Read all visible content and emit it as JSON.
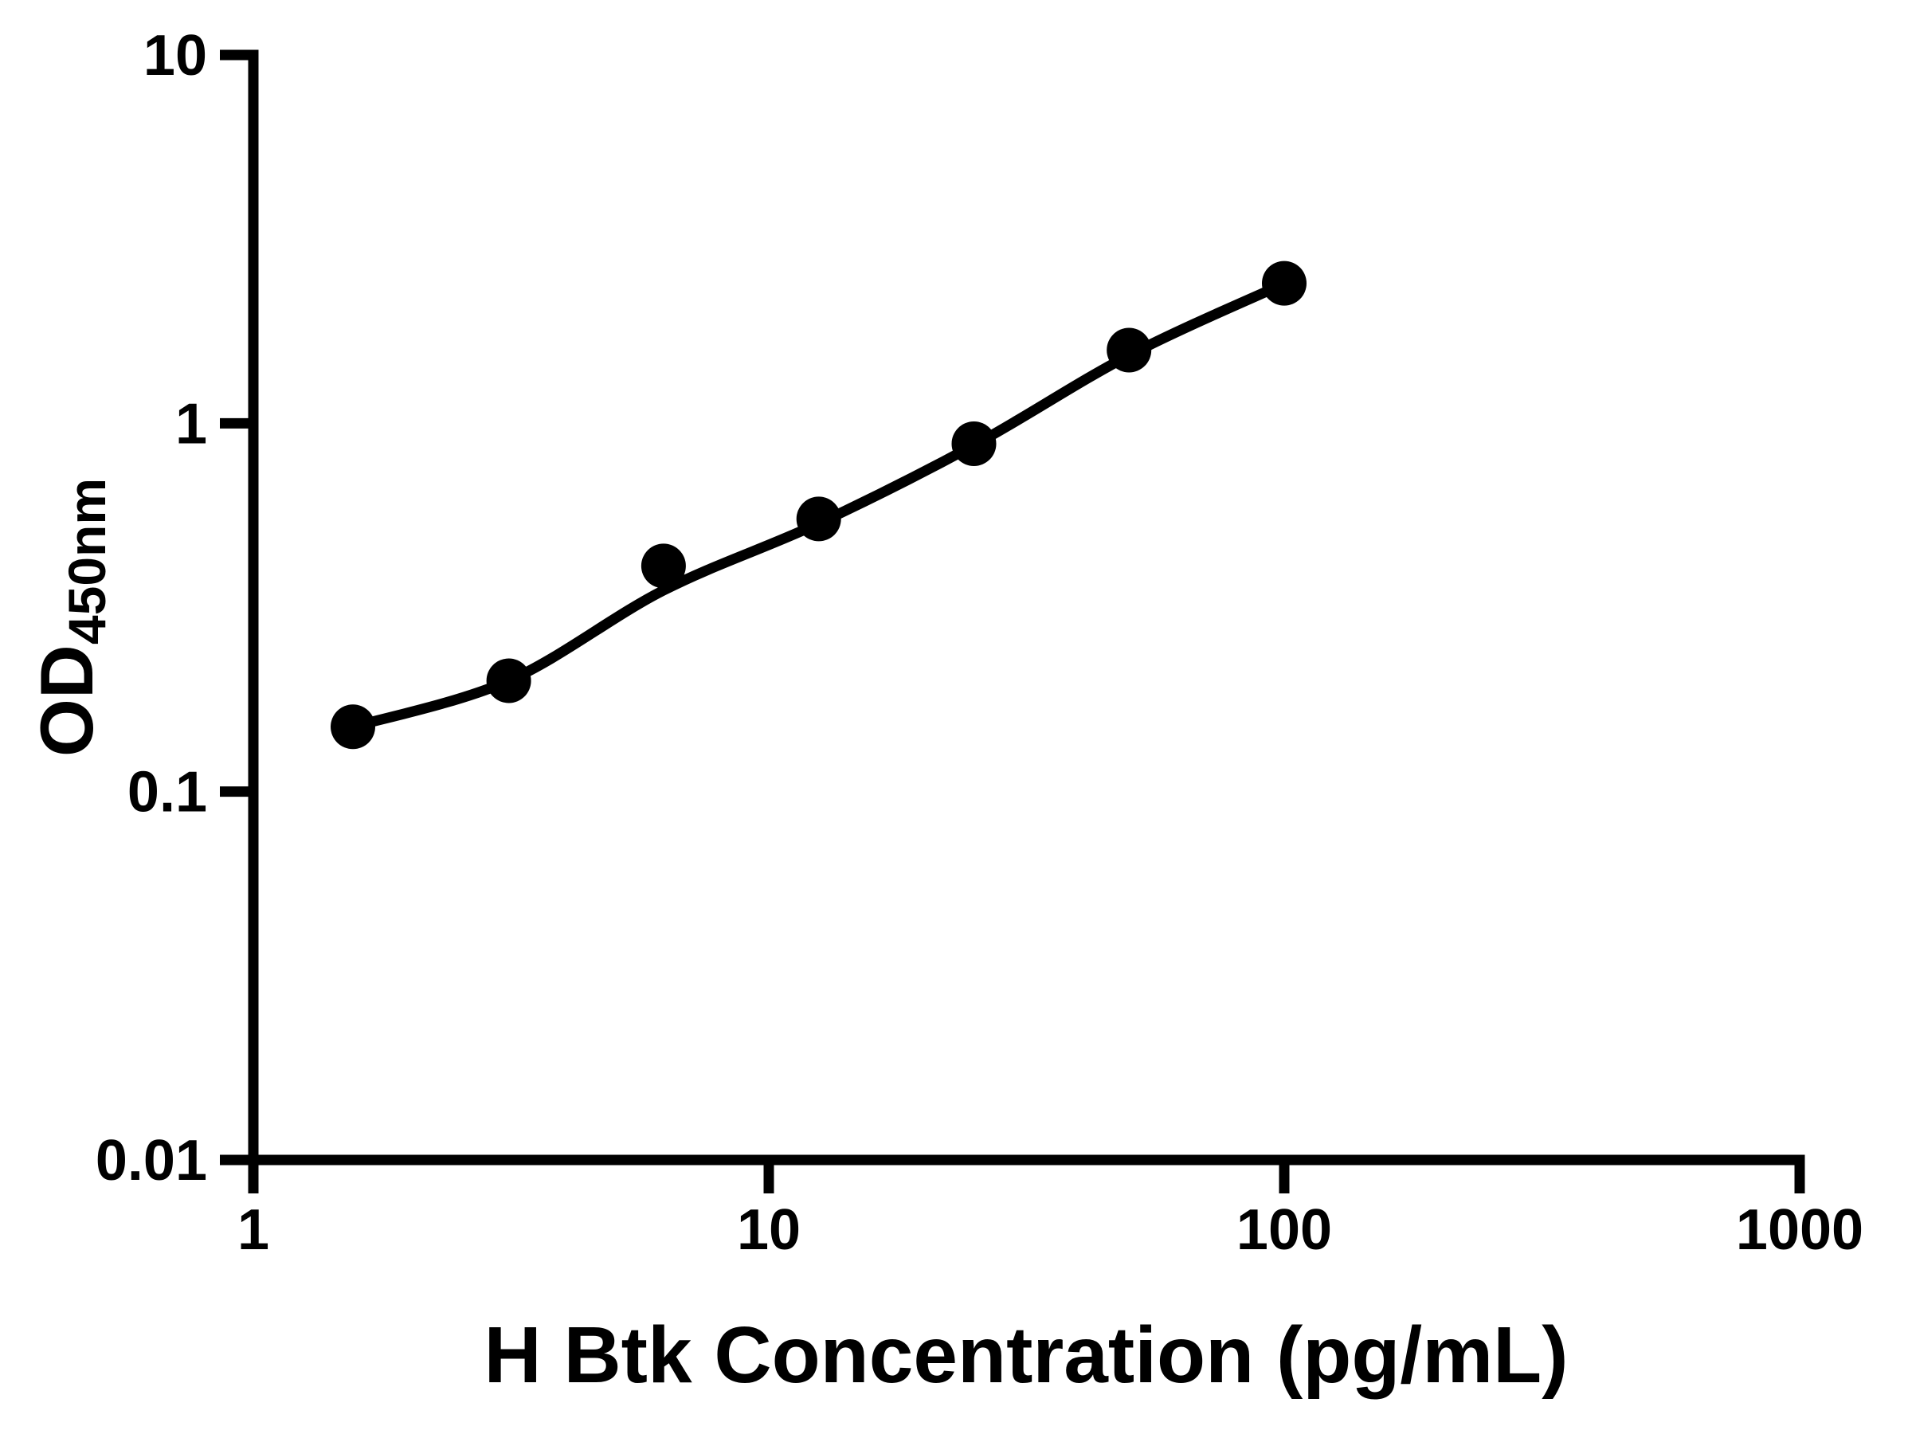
{
  "figure": {
    "background_color": "#ffffff",
    "ink_color": "#000000"
  },
  "chart_data": {
    "type": "scatter",
    "title": "",
    "xlabel": "H Btk Concentration (pg/mL)",
    "ylabel": "OD",
    "ylabel_subscript": "450nm",
    "x_scale": "log",
    "y_scale": "log",
    "xlim": [
      1,
      1000
    ],
    "ylim": [
      0.01,
      10
    ],
    "grid": false,
    "legend": null,
    "x_ticks": [
      "1",
      "10",
      "100",
      "1000"
    ],
    "x_tick_values": [
      1,
      10,
      100,
      1000
    ],
    "y_ticks": [
      "10",
      "1",
      "0.1",
      "0.01"
    ],
    "y_tick_values": [
      10,
      1,
      0.1,
      0.01
    ],
    "series": [
      {
        "name": "standard-points",
        "kind": "points",
        "marker": "filled-circle",
        "color": "#000000",
        "x": [
          1.56,
          3.13,
          6.25,
          12.5,
          25,
          50,
          100
        ],
        "y": [
          0.15,
          0.2,
          0.41,
          0.55,
          0.88,
          1.58,
          2.4
        ]
      },
      {
        "name": "fitted-curve",
        "kind": "line",
        "color": "#000000",
        "x": [
          1.56,
          3.13,
          6.25,
          12.5,
          25,
          50,
          100
        ],
        "y": [
          0.15,
          0.2,
          0.352,
          0.535,
          0.872,
          1.53,
          2.395
        ]
      }
    ]
  }
}
